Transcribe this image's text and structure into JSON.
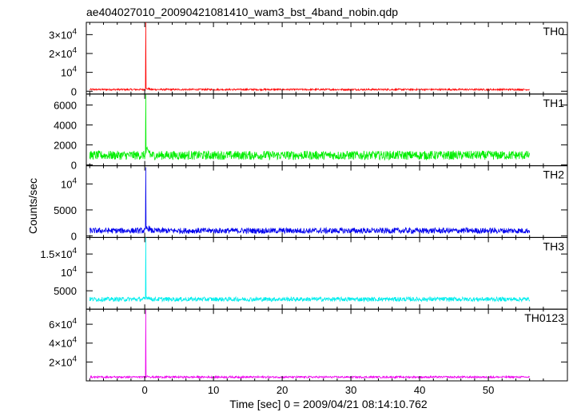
{
  "chart_data": {
    "type": "line",
    "title": "ae404027010_20090421081410_wam3_bst_4band_nobin.qdp",
    "xlabel": "Time [sec] 0 = 2009/04/21 08:14:10.762",
    "ylabel": "Counts/sec",
    "xlim": [
      -8.5,
      61.5
    ],
    "x_ticks": [
      0,
      10,
      20,
      30,
      40,
      50
    ],
    "x_tick_labels": [
      "0",
      "10",
      "20",
      "30",
      "40",
      "50"
    ],
    "data_x_range": [
      -8.0,
      56.0
    ],
    "grid": false,
    "panels": [
      {
        "name": "TH0",
        "color": "#ff0000",
        "ylim": [
          -1500,
          36500
        ],
        "yticks": [
          0,
          10000,
          20000,
          30000
        ],
        "ytick_labels": [
          {
            "m": "0",
            "e": ""
          },
          {
            "m": "10",
            "e": "4"
          },
          {
            "m": "2×10",
            "e": "4"
          },
          {
            "m": "3×10",
            "e": "4"
          }
        ],
        "baseline": 900,
        "noise": 450,
        "peak": 36500,
        "peak_time": 0.15
      },
      {
        "name": "TH1",
        "color": "#00ee00",
        "ylim": [
          -100,
          7100
        ],
        "yticks": [
          0,
          2000,
          4000,
          6000
        ],
        "ytick_labels": [
          {
            "m": "0",
            "e": ""
          },
          {
            "m": "2000",
            "e": ""
          },
          {
            "m": "4000",
            "e": ""
          },
          {
            "m": "6000",
            "e": ""
          }
        ],
        "baseline": 950,
        "noise": 450,
        "peak": 7050,
        "peak_time": 0.15
      },
      {
        "name": "TH2",
        "color": "#0000ee",
        "ylim": [
          -300,
          13500
        ],
        "yticks": [
          0,
          5000,
          10000
        ],
        "ytick_labels": [
          {
            "m": "0",
            "e": ""
          },
          {
            "m": "5000",
            "e": ""
          },
          {
            "m": "10",
            "e": "4"
          }
        ],
        "baseline": 1000,
        "noise": 550,
        "peak": 13200,
        "peak_time": 0.15
      },
      {
        "name": "TH3",
        "color": "#00eeee",
        "ylim": [
          0,
          19500
        ],
        "yticks": [
          5000,
          10000,
          15000
        ],
        "ytick_labels": [
          {
            "m": "5000",
            "e": ""
          },
          {
            "m": "10",
            "e": "4"
          },
          {
            "m": "1.5×10",
            "e": "4"
          }
        ],
        "baseline": 2700,
        "noise": 600,
        "peak": 19500,
        "peak_time": 0.15
      },
      {
        "name": "TH0123",
        "color": "#ee00ee",
        "ylim": [
          0,
          76000
        ],
        "yticks": [
          20000,
          40000,
          60000
        ],
        "ytick_labels": [
          {
            "m": "2×10",
            "e": "4"
          },
          {
            "m": "4×10",
            "e": "4"
          },
          {
            "m": "6×10",
            "e": "4"
          }
        ],
        "baseline": 4000,
        "noise": 1000,
        "peak": 75500,
        "peak_time": 0.15
      }
    ]
  }
}
